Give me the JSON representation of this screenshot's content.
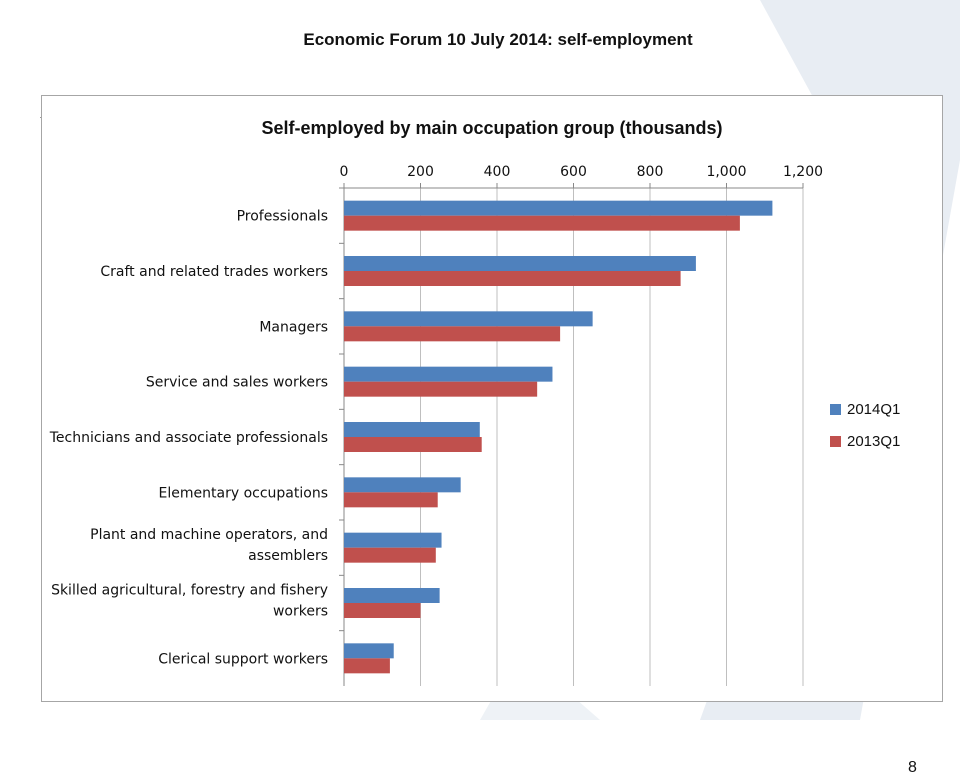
{
  "slide": {
    "title": "Economic Forum 10 July 2014: self-employment",
    "page_number": "8"
  },
  "colors": {
    "series_2014": "#4f81bd",
    "series_2013": "#c0504d",
    "background_shape": "#e8edf3"
  },
  "chart_data": {
    "type": "bar",
    "orientation": "horizontal",
    "title": "Self-employed by main occupation group (thousands)",
    "xlabel": "",
    "ylabel": "",
    "categories": [
      "Professionals",
      "Craft and related trades workers",
      "Managers",
      "Service and sales workers",
      "Technicians and associate professionals",
      "Elementary occupations",
      "Plant and machine operators, and assemblers",
      "Skilled agricultural, forestry and fishery workers",
      "Clerical support workers"
    ],
    "category_label_lines": [
      [
        "Professionals"
      ],
      [
        "Craft and related trades workers"
      ],
      [
        "Managers"
      ],
      [
        "Service and sales workers"
      ],
      [
        "Technicians and associate professionals"
      ],
      [
        "Elementary occupations"
      ],
      [
        "Plant and machine operators, and",
        "assemblers"
      ],
      [
        "Skilled agricultural, forestry and fishery",
        "workers"
      ],
      [
        "Clerical support workers"
      ]
    ],
    "series": [
      {
        "name": "2014Q1",
        "values": [
          1120,
          920,
          650,
          545,
          355,
          305,
          255,
          250,
          130
        ]
      },
      {
        "name": "2013Q1",
        "values": [
          1035,
          880,
          565,
          505,
          360,
          245,
          240,
          200,
          120
        ]
      }
    ],
    "xlim": [
      0,
      1200
    ],
    "xticks": [
      0,
      200,
      400,
      600,
      800,
      1000,
      1200
    ],
    "xtick_labels": [
      "0",
      "200",
      "400",
      "600",
      "800",
      "1,000",
      "1,200"
    ],
    "axis_position": "top",
    "grid": true,
    "legend_position": "right"
  }
}
